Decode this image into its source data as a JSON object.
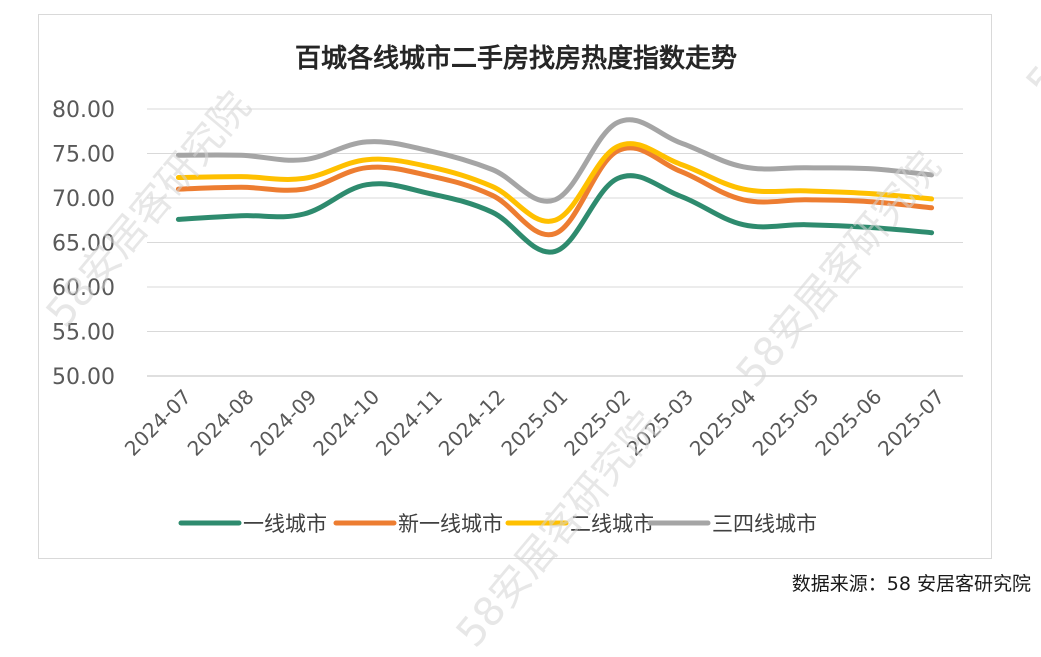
{
  "source_note": "数据来源：58 安居客研究院",
  "watermark": "58安居客研究院",
  "chart_data": {
    "type": "line",
    "title": "百城各线城市二手房找房热度指数走势",
    "xlabel": "",
    "ylabel": "",
    "categories": [
      "2024-07",
      "2024-08",
      "2024-09",
      "2024-10",
      "2024-11",
      "2024-12",
      "2025-01",
      "2025-02",
      "2025-03",
      "2025-04",
      "2025-05",
      "2025-06",
      "2025-07"
    ],
    "ylim": [
      50,
      80
    ],
    "yticks": [
      "50.00",
      "55.00",
      "60.00",
      "65.00",
      "70.00",
      "75.00",
      "80.00"
    ],
    "grid": true,
    "legend_position": "bottom",
    "series": [
      {
        "name": "一线城市",
        "color": "#2e8b6e",
        "values": [
          67.6,
          68.0,
          68.2,
          71.5,
          70.5,
          68.4,
          64.0,
          72.2,
          70.2,
          67.0,
          67.0,
          66.7,
          66.1
        ]
      },
      {
        "name": "新一线城市",
        "color": "#ed7d31",
        "values": [
          71.0,
          71.2,
          71.0,
          73.4,
          72.5,
          70.3,
          66.0,
          75.3,
          73.0,
          69.8,
          69.8,
          69.6,
          68.9
        ]
      },
      {
        "name": "二线城市",
        "color": "#ffc000",
        "values": [
          72.3,
          72.4,
          72.2,
          74.3,
          73.5,
          71.3,
          67.5,
          75.8,
          73.8,
          71.0,
          70.8,
          70.5,
          69.9
        ]
      },
      {
        "name": "三四线城市",
        "color": "#a5a5a5",
        "values": [
          74.8,
          74.8,
          74.3,
          76.3,
          75.3,
          73.2,
          69.8,
          78.5,
          76.2,
          73.5,
          73.4,
          73.3,
          72.6
        ]
      }
    ]
  }
}
